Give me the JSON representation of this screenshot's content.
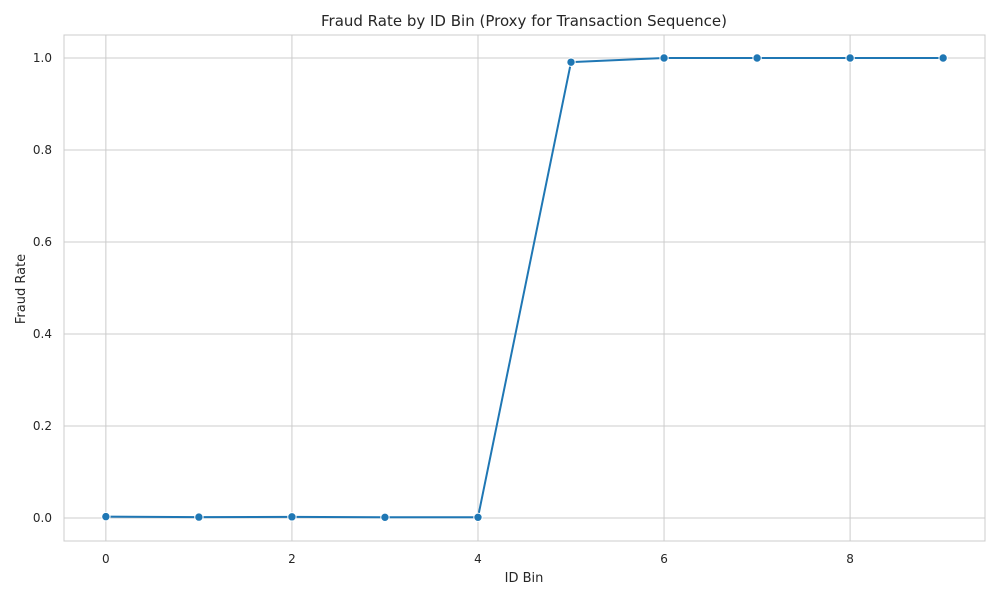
{
  "chart_data": {
    "type": "line",
    "title": "Fraud Rate by ID Bin (Proxy for Transaction Sequence)",
    "xlabel": "ID Bin",
    "ylabel": "Fraud Rate",
    "x": [
      0,
      1,
      2,
      3,
      4,
      5,
      6,
      7,
      8,
      9
    ],
    "series": [
      {
        "values": [
          0.003,
          0.002,
          0.0025,
          0.0015,
          0.0015,
          0.991,
          1.0,
          1.0,
          1.0,
          1.0
        ]
      }
    ],
    "xlim": [
      -0.45,
      9.45
    ],
    "ylim": [
      -0.05,
      1.05
    ],
    "xticks": [
      0,
      2,
      4,
      6,
      8
    ],
    "yticks": [
      0.0,
      0.2,
      0.4,
      0.6,
      0.8,
      1.0
    ],
    "xtick_labels": [
      "0",
      "2",
      "4",
      "6",
      "8"
    ],
    "ytick_labels": [
      "0.0",
      "0.2",
      "0.4",
      "0.6",
      "0.8",
      "1.0"
    ],
    "grid": true,
    "marker": "circle",
    "colors": {
      "line": "#1f77b4",
      "grid": "#cccccc",
      "frame": "#cccccc",
      "text": "#262626"
    }
  }
}
